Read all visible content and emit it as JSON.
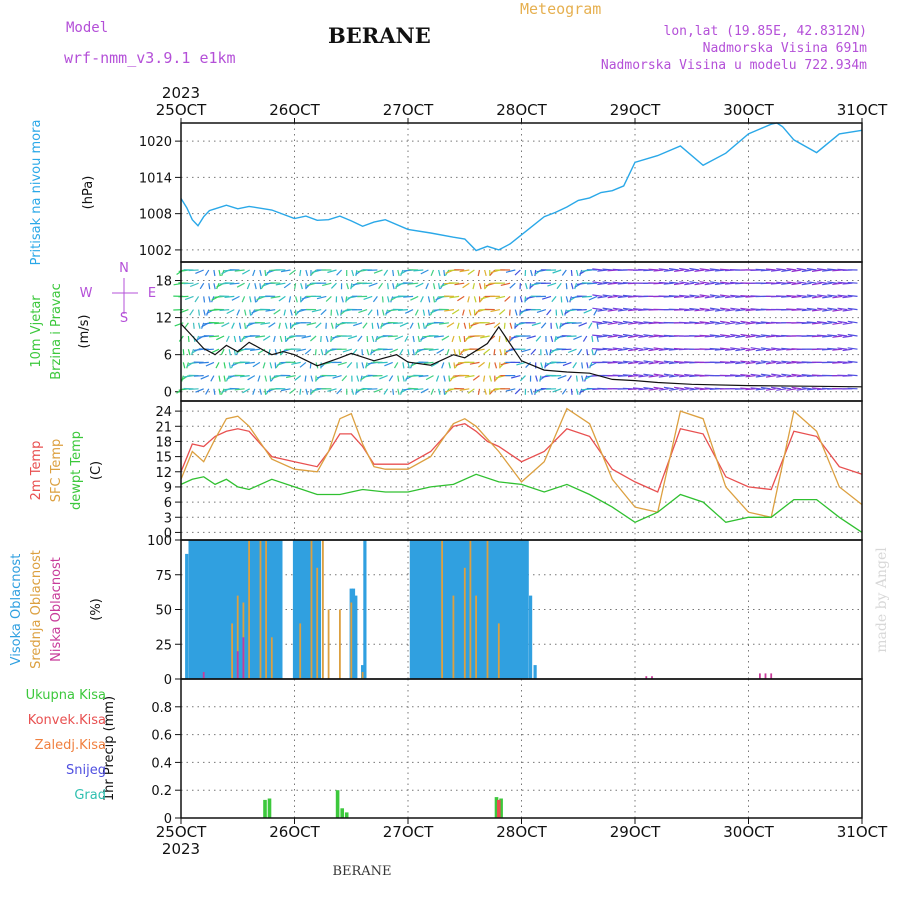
{
  "header": {
    "model_label": "Model",
    "model_name": "wrf-nmm_v3.9.1 e1km",
    "station": "BERANE",
    "title": "Meteogram",
    "lonlat": "lon,lat (19.85E, 42.8312N)",
    "elevation": "Nadmorska Visina 691m",
    "model_elevation": "Nadmorska Visina u modelu 722.934m",
    "watermark": "made by Angel"
  },
  "footer": {
    "station": "BERANE"
  },
  "colors": {
    "pressure": "#2aa8e8",
    "wind_speed_line": "#111111",
    "temp_2m": "#e85050",
    "temp_sfc": "#dca040",
    "dewpoint": "#30c030",
    "cloud_high": "#30a0e0",
    "cloud_mid": "#dca040",
    "cloud_low": "#c83c9a",
    "precip_total": "#3cc83c",
    "precip_conv": "#e85050",
    "precip_ice": "#f08040",
    "snow": "#5050e0",
    "grad": "#30c0b0"
  },
  "chart_data": [
    {
      "type": "line",
      "name": "pressure",
      "side_labels": [
        "Pritisak na nivou mora"
      ],
      "ylabel": "(hPa)",
      "ylim": [
        1000,
        1023
      ],
      "yticks": [
        1002,
        1008,
        1014,
        1020
      ],
      "x_ticks": [
        "25OCT",
        "26OCT",
        "27OCT",
        "28OCT",
        "29OCT",
        "30OCT",
        "31OCT"
      ],
      "x_year": "2023",
      "x": [
        0,
        0.05,
        0.1,
        0.15,
        0.2,
        0.25,
        0.3,
        0.4,
        0.5,
        0.6,
        0.8,
        1.0,
        1.1,
        1.2,
        1.3,
        1.4,
        1.5,
        1.6,
        1.7,
        1.8,
        2.0,
        2.2,
        2.4,
        2.5,
        2.6,
        2.7,
        2.8,
        2.9,
        3.0,
        3.2,
        3.3,
        3.4,
        3.5,
        3.6,
        3.7,
        3.8,
        3.9,
        4.0,
        4.2,
        4.4,
        4.6,
        4.8,
        5.0,
        5.1,
        5.2,
        5.25,
        5.3,
        5.4,
        5.6,
        5.8,
        6.0
      ],
      "values": [
        1010.5,
        1009,
        1007,
        1006,
        1007.5,
        1008.5,
        1008.8,
        1009.4,
        1008.8,
        1009.2,
        1008.6,
        1007.2,
        1007.6,
        1006.9,
        1007,
        1007.6,
        1006.8,
        1005.9,
        1006.6,
        1007,
        1005.4,
        1004.8,
        1004.1,
        1003.8,
        1001.9,
        1002.6,
        1002,
        1003,
        1004.5,
        1007.5,
        1008.2,
        1009.1,
        1010.2,
        1010.6,
        1011.5,
        1011.8,
        1012.6,
        1016.5,
        1017.6,
        1019.2,
        1016,
        1018,
        1021.2,
        1022,
        1022.8,
        1023,
        1022.4,
        1020.2,
        1018.1,
        1021.2,
        1021.8
      ]
    },
    {
      "type": "line",
      "name": "wind",
      "side_labels": [
        "10m Vjetar",
        "Brzina i Pravac"
      ],
      "ylabel": "(m/s)",
      "direction_labels": [
        "N",
        "E",
        "W",
        "S"
      ],
      "ylim": [
        -1.5,
        21
      ],
      "yticks": [
        0,
        6,
        12,
        18
      ],
      "x": [
        0,
        0.1,
        0.2,
        0.3,
        0.4,
        0.5,
        0.6,
        0.7,
        0.8,
        0.9,
        1.0,
        1.2,
        1.4,
        1.5,
        1.7,
        1.9,
        2.0,
        2.2,
        2.4,
        2.5,
        2.7,
        2.8,
        3.0,
        3.2,
        3.4,
        3.6,
        3.8,
        4.0,
        4.2,
        4.5,
        5.0,
        5.5,
        6.0
      ],
      "values": [
        11,
        9,
        7,
        6,
        7.5,
        6.5,
        8,
        7,
        6,
        6.5,
        6,
        4.2,
        5.5,
        6.2,
        5,
        6,
        4.8,
        4.3,
        6,
        5.5,
        7.8,
        10.5,
        5,
        3.5,
        3.2,
        3,
        2,
        1.8,
        1.5,
        1.2,
        1,
        0.9,
        0.8
      ]
    },
    {
      "type": "line",
      "name": "temperature",
      "side_labels": [
        "2m Temp",
        "SFC Temp",
        "dewpt Temp"
      ],
      "ylabel": "(C)",
      "ylim": [
        -1.5,
        26
      ],
      "yticks": [
        0,
        3,
        6,
        9,
        12,
        15,
        18,
        21,
        24
      ],
      "series": [
        {
          "name": "2m Temp",
          "x": [
            0,
            0.1,
            0.2,
            0.3,
            0.4,
            0.5,
            0.6,
            0.8,
            1.0,
            1.2,
            1.3,
            1.4,
            1.5,
            1.6,
            1.7,
            1.8,
            2.0,
            2.2,
            2.4,
            2.5,
            2.6,
            2.7,
            2.8,
            3.0,
            3.2,
            3.4,
            3.6,
            3.8,
            4.0,
            4.2,
            4.4,
            4.6,
            4.8,
            5.0,
            5.2,
            5.4,
            5.6,
            5.8,
            6.0
          ],
          "values": [
            12,
            17.5,
            17,
            19,
            20,
            20.5,
            20,
            15,
            14,
            13,
            16,
            19.5,
            19.5,
            17,
            13.5,
            13.5,
            13.5,
            16,
            21,
            21.5,
            20,
            18,
            17,
            14,
            16,
            20.5,
            19,
            12.5,
            10,
            8,
            20.5,
            19.5,
            11,
            9,
            8.5,
            20,
            19,
            13,
            11.5
          ]
        },
        {
          "name": "SFC Temp",
          "x": [
            0,
            0.1,
            0.2,
            0.3,
            0.4,
            0.5,
            0.6,
            0.8,
            1.0,
            1.2,
            1.3,
            1.4,
            1.5,
            1.6,
            1.7,
            1.8,
            2.0,
            2.2,
            2.4,
            2.5,
            2.6,
            2.7,
            2.8,
            3.0,
            3.2,
            3.4,
            3.6,
            3.8,
            4.0,
            4.2,
            4.4,
            4.6,
            4.8,
            5.0,
            5.2,
            5.4,
            5.6,
            5.8,
            6.0
          ],
          "values": [
            10.5,
            16,
            14,
            18.5,
            22.5,
            23,
            21,
            14.5,
            12.5,
            12,
            16,
            22.5,
            23.5,
            17.5,
            13,
            12.5,
            12.5,
            15,
            21.5,
            22.5,
            21,
            18.5,
            16,
            10,
            14,
            24.5,
            21.5,
            10.5,
            5,
            4,
            24,
            22.5,
            9,
            4,
            3,
            24,
            20,
            9,
            5.5
          ]
        },
        {
          "name": "dewpt Temp",
          "x": [
            0,
            0.1,
            0.2,
            0.3,
            0.4,
            0.5,
            0.6,
            0.8,
            1.0,
            1.2,
            1.4,
            1.6,
            1.8,
            2.0,
            2.2,
            2.4,
            2.6,
            2.8,
            3.0,
            3.2,
            3.4,
            3.6,
            3.8,
            4.0,
            4.2,
            4.4,
            4.6,
            4.8,
            5.0,
            5.2,
            5.4,
            5.6,
            5.8,
            6.0
          ],
          "values": [
            9.5,
            10.5,
            11,
            9.5,
            10.5,
            9,
            8.5,
            10.5,
            9,
            7.5,
            7.5,
            8.5,
            8,
            8,
            9,
            9.5,
            11.5,
            10,
            9.5,
            8,
            9.5,
            7.5,
            5,
            2,
            4,
            7.5,
            6,
            2,
            3,
            3,
            6.5,
            6.5,
            3,
            0
          ]
        }
      ]
    },
    {
      "type": "bar",
      "name": "cloud_cover",
      "side_labels": [
        "Visoka Oblacnost",
        "Srednja Oblacnost",
        "Niska Oblacnost"
      ],
      "ylabel": "(%)",
      "ylim": [
        0,
        100
      ],
      "yticks": [
        0,
        25,
        50,
        75,
        100
      ],
      "series": [
        {
          "name": "Visoka Oblacnost",
          "x": [
            0.05,
            0.08,
            0.1,
            0.12,
            0.14,
            0.16,
            0.18,
            0.2,
            0.22,
            0.24,
            0.26,
            0.28,
            0.3,
            0.32,
            0.34,
            0.36,
            0.38,
            0.4,
            0.42,
            0.44,
            0.46,
            0.48,
            0.5,
            0.52,
            0.54,
            0.56,
            0.58,
            0.6,
            0.62,
            0.64,
            0.66,
            0.68,
            0.7,
            0.72,
            0.74,
            0.76,
            0.78,
            0.8,
            0.82,
            0.84,
            0.86,
            0.88,
            1.0,
            1.02,
            1.04,
            1.06,
            1.08,
            1.1,
            1.12,
            1.14,
            1.16,
            1.18,
            1.2,
            1.22,
            1.5,
            1.52,
            1.54,
            1.6,
            1.62,
            2.03,
            2.05,
            2.07,
            2.09,
            2.11,
            2.13,
            2.15,
            2.17,
            2.19,
            2.21,
            2.23,
            2.25,
            2.27,
            2.29,
            2.31,
            2.33,
            2.35,
            2.37,
            2.39,
            2.41,
            2.43,
            2.45,
            2.47,
            2.49,
            2.51,
            2.53,
            2.55,
            2.57,
            2.59,
            2.61,
            2.63,
            2.65,
            2.67,
            2.69,
            2.71,
            2.73,
            2.75,
            2.77,
            2.79,
            2.81,
            2.83,
            2.85,
            2.87,
            2.89,
            2.91,
            2.93,
            2.95,
            2.97,
            2.99,
            3.01,
            3.03,
            3.05,
            3.08,
            3.12
          ],
          "values": [
            90,
            100,
            100,
            100,
            100,
            100,
            100,
            100,
            100,
            100,
            100,
            100,
            100,
            100,
            100,
            100,
            100,
            100,
            100,
            100,
            100,
            100,
            100,
            100,
            100,
            100,
            100,
            100,
            100,
            100,
            100,
            100,
            100,
            100,
            100,
            100,
            100,
            100,
            100,
            100,
            100,
            100,
            100,
            100,
            100,
            100,
            100,
            100,
            100,
            100,
            100,
            100,
            100,
            100,
            65,
            65,
            60,
            10,
            100,
            100,
            100,
            100,
            100,
            100,
            100,
            100,
            100,
            100,
            100,
            100,
            100,
            100,
            100,
            100,
            100,
            100,
            100,
            100,
            100,
            100,
            100,
            100,
            100,
            100,
            100,
            100,
            100,
            100,
            100,
            100,
            100,
            100,
            100,
            100,
            100,
            100,
            100,
            100,
            100,
            100,
            100,
            100,
            100,
            100,
            100,
            100,
            100,
            100,
            100,
            100,
            100,
            60,
            10
          ]
        },
        {
          "name": "Srednja Oblacnost",
          "x": [
            0.45,
            0.5,
            0.55,
            0.6,
            0.7,
            0.75,
            0.8,
            1.05,
            1.15,
            1.2,
            1.25,
            1.3,
            1.4,
            1.5,
            1.6,
            2.3,
            2.4,
            2.5,
            2.55,
            2.6,
            2.7,
            2.8
          ],
          "values": [
            40,
            60,
            55,
            100,
            100,
            100,
            30,
            40,
            100,
            80,
            100,
            50,
            50,
            55,
            5,
            100,
            60,
            80,
            100,
            60,
            100,
            40
          ]
        },
        {
          "name": "Niska Oblacnost",
          "x": [
            0.2,
            0.5,
            0.55,
            4.1,
            4.15,
            5.1,
            5.15,
            5.2
          ],
          "values": [
            5,
            20,
            30,
            2,
            2,
            4,
            4,
            4
          ]
        }
      ]
    },
    {
      "type": "bar",
      "name": "precipitation",
      "ylabel": "1hr Precip (mm)",
      "ylim": [
        0,
        1.0
      ],
      "yticks": [
        0,
        0.2,
        0.4,
        0.6,
        0.8
      ],
      "legend": [
        "Ukupna Kisa",
        "Konvek.Kisa",
        "Zaledj.Kisa",
        "Snijeg",
        "Grad"
      ],
      "series": [
        {
          "name": "Ukupna Kisa",
          "x": [
            0.74,
            0.78,
            1.38,
            1.42,
            1.46,
            2.78,
            2.82
          ],
          "values": [
            0.13,
            0.14,
            0.2,
            0.07,
            0.04,
            0.15,
            0.14
          ]
        },
        {
          "name": "Konvek.Kisa",
          "x": [
            2.8
          ],
          "values": [
            0.13
          ]
        }
      ]
    }
  ]
}
